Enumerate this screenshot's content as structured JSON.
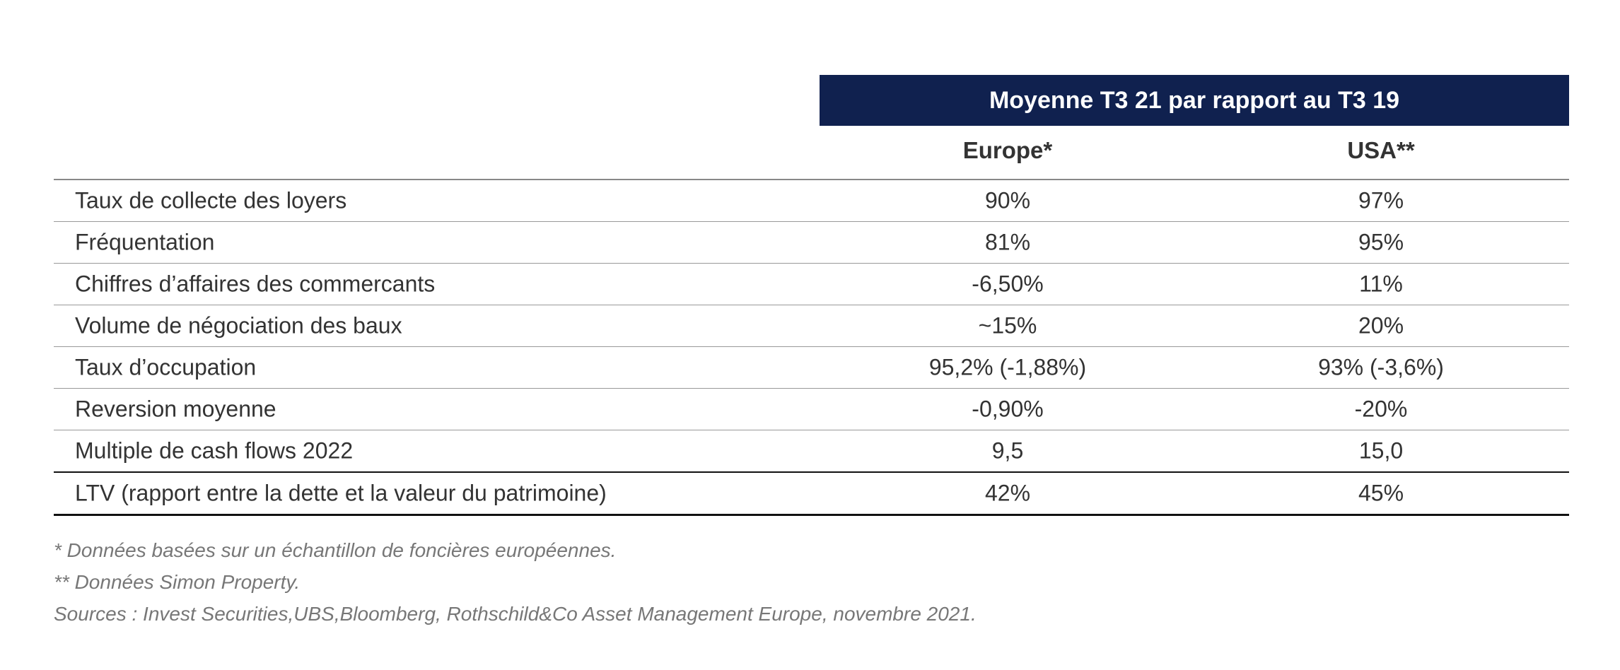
{
  "header": {
    "title": "Moyenne T3 21 par rapport au T3 19"
  },
  "columns": {
    "europe": "Europe*",
    "usa": "USA**"
  },
  "rows": [
    {
      "label": "Taux de collecte des loyers",
      "europe": "90%",
      "usa": "97%"
    },
    {
      "label": "Fréquentation",
      "europe": "81%",
      "usa": "95%"
    },
    {
      "label": "Chiffres d’affaires des commercants",
      "europe": "-6,50%",
      "usa": "11%"
    },
    {
      "label": "Volume de négociation des baux",
      "europe": "~15%",
      "usa": "20%"
    },
    {
      "label": "Taux d’occupation",
      "europe": "95,2% (-1,88%)",
      "usa": "93% (-3,6%)"
    },
    {
      "label": "Reversion moyenne",
      "europe": "-0,90%",
      "usa": "-20%"
    },
    {
      "label": "Multiple de cash flows 2022",
      "europe": "9,5",
      "usa": "15,0"
    },
    {
      "label": "LTV (rapport entre la dette et la valeur du patrimoine)",
      "europe": "42%",
      "usa": "45%"
    }
  ],
  "notes": [
    "* Données basées sur un échantillon de foncières européennes.",
    "** Données Simon Property.",
    "Sources : Invest Securities,UBS,Bloomberg, Rothschild&Co Asset Management Europe, novembre 2021."
  ],
  "colors": {
    "header_bg": "#10214f"
  }
}
